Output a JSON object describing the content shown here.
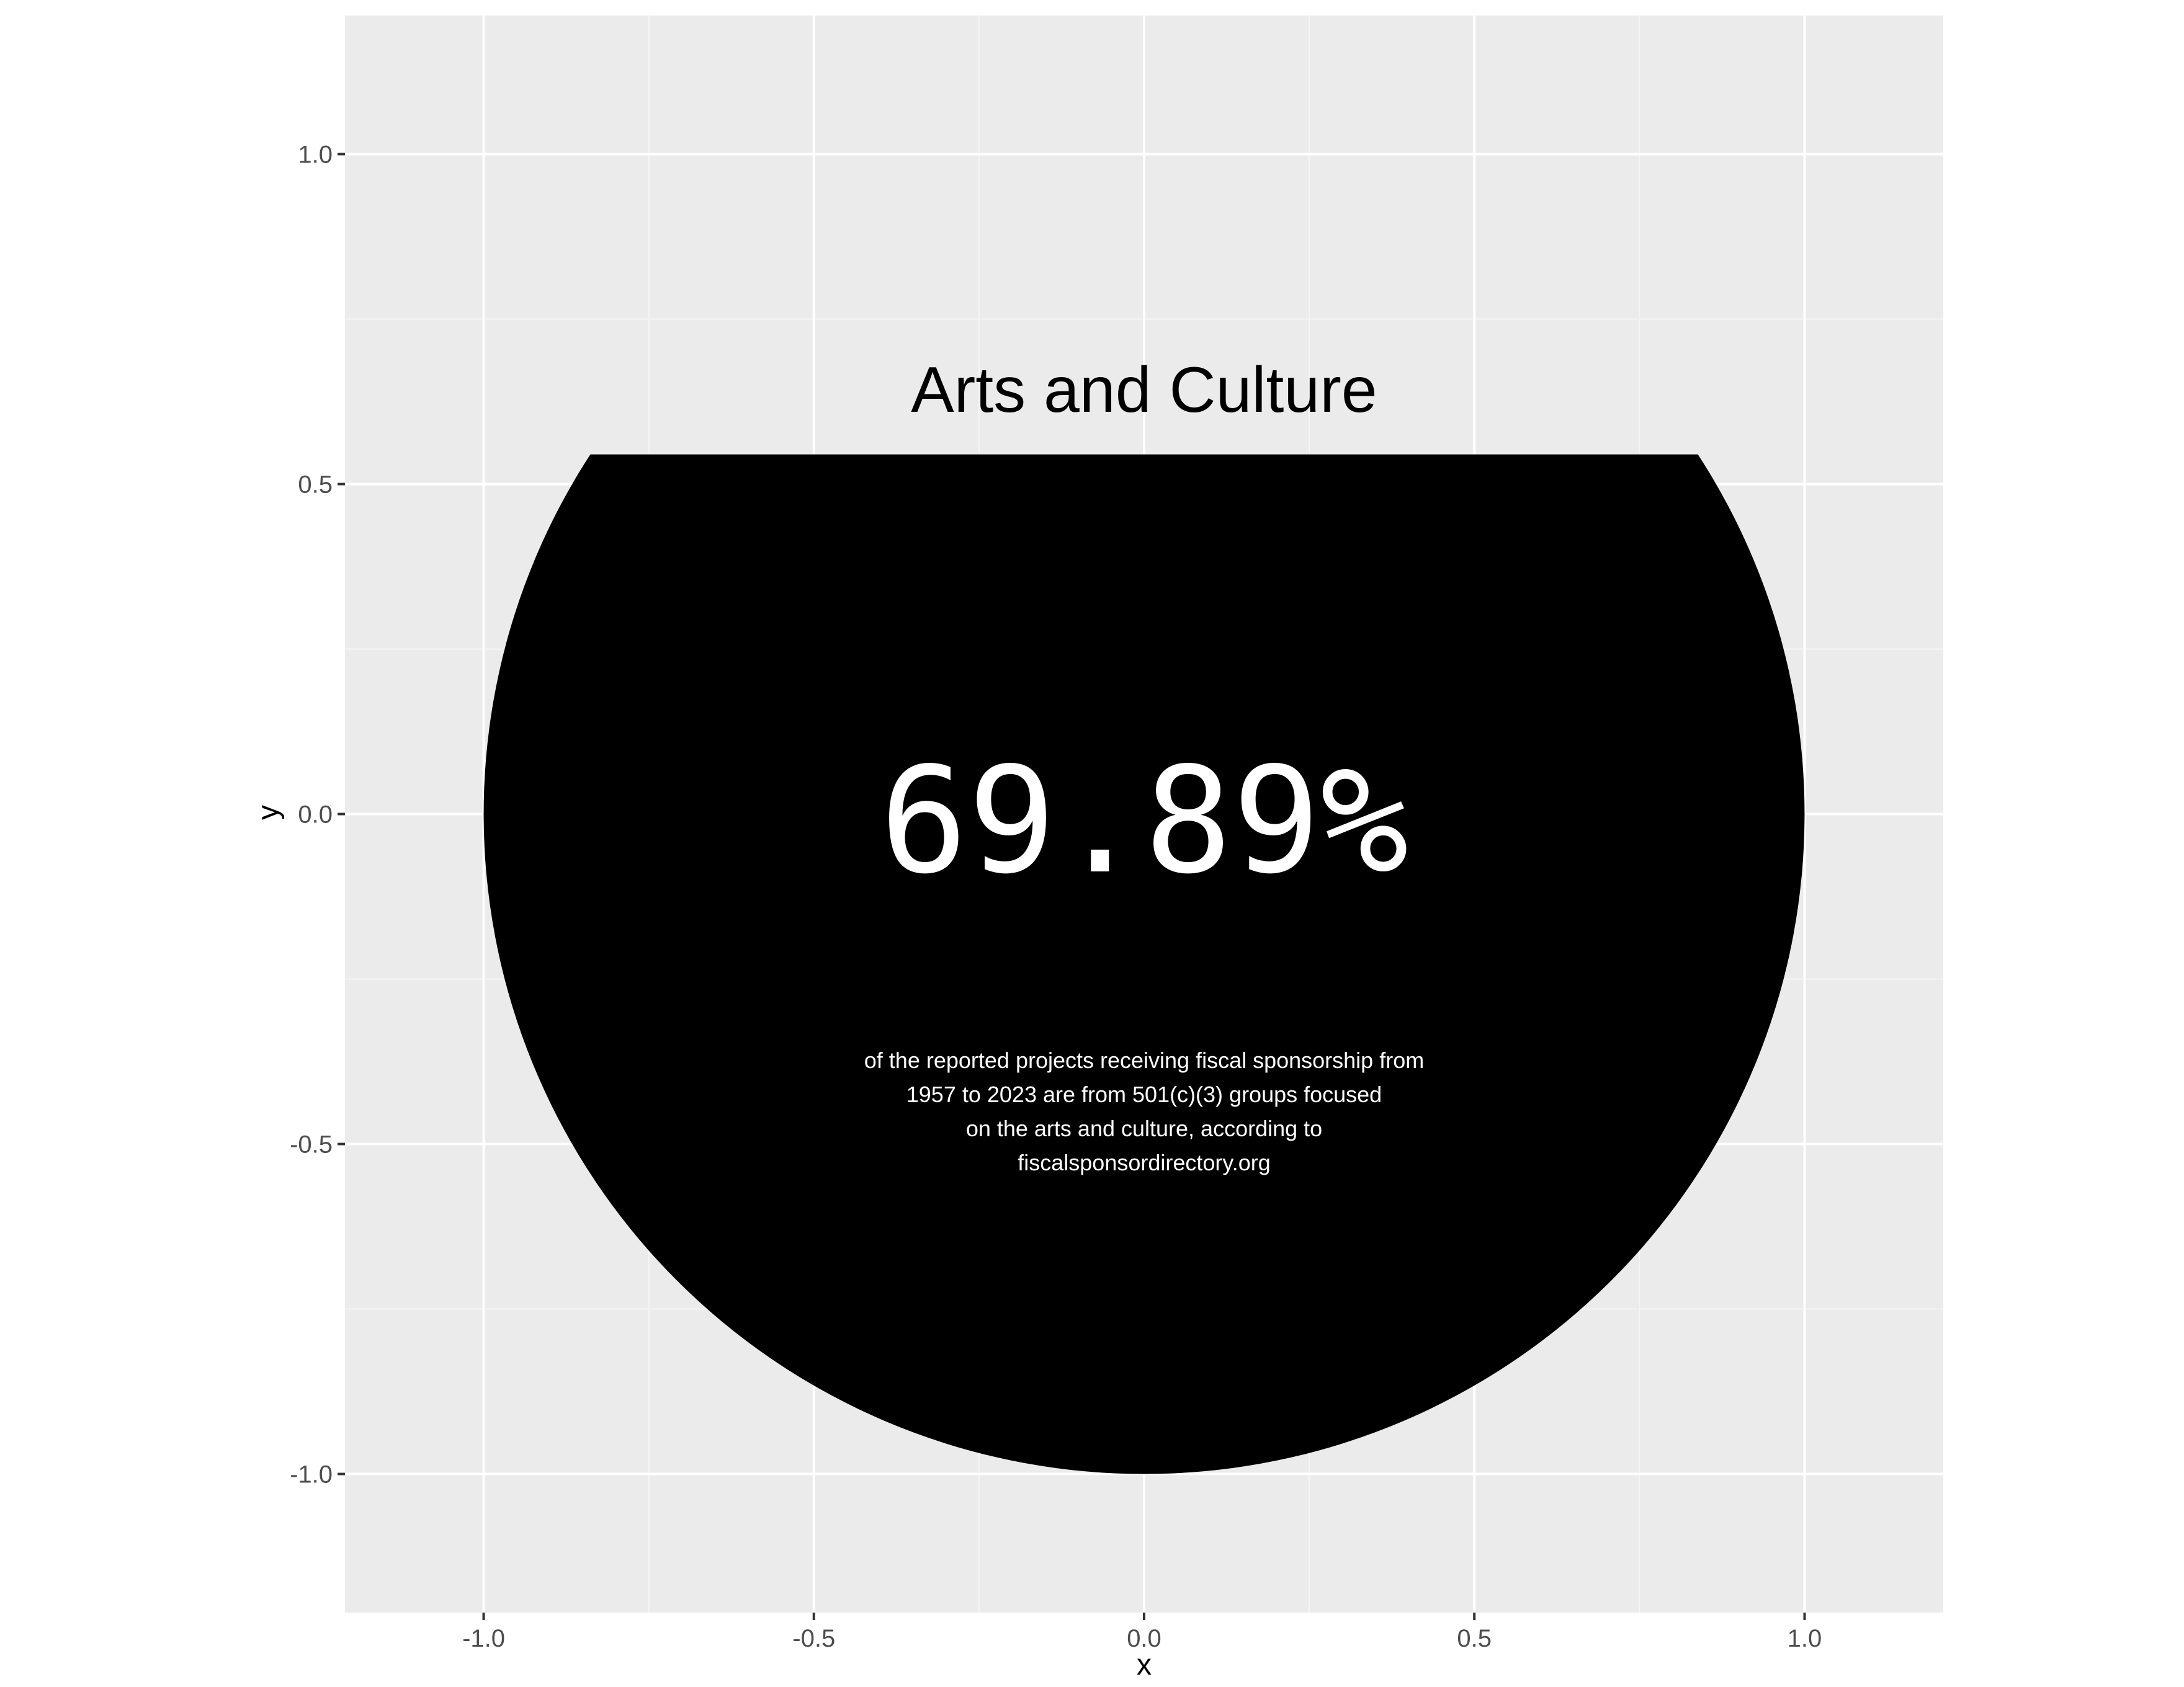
{
  "chart_data": {
    "type": "pie",
    "title": "Arts and Culture",
    "value_label": "69.89%",
    "value": 69.89,
    "caption_lines": [
      "of the reported projects receiving fiscal sponsorship from",
      "1957 to 2023 are from 501(c)(3) groups focused",
      "on the arts and culture, according to",
      "fiscalsponsordirectory.org"
    ],
    "xlabel": "x",
    "ylabel": "y",
    "xlim": [
      -1.21,
      1.21
    ],
    "ylim": [
      -1.21,
      1.21
    ],
    "x_ticks": [
      -1.0,
      -0.5,
      0.0,
      0.5,
      1.0
    ],
    "x_tick_labels": [
      "-1.0",
      "-0.5",
      "0.0",
      "0.5",
      "1.0"
    ],
    "y_ticks": [
      -1.0,
      -0.5,
      0.0,
      0.5,
      1.0
    ],
    "y_tick_labels": [
      "-1.0",
      "-0.5",
      "0.0",
      "0.5",
      "1.0"
    ],
    "circle_radius": 1.0,
    "fill_level_y": 0.545,
    "grid": true,
    "colors": {
      "panel_background": "#ebebeb",
      "grid_major": "#ffffff",
      "grid_minor": "#f5f5f5",
      "fill": "#000000",
      "tick_mark": "#333333"
    }
  }
}
